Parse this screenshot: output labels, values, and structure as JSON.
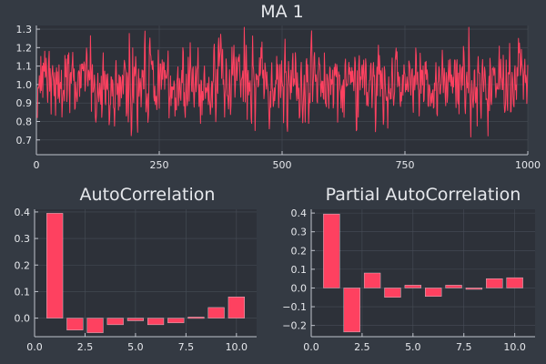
{
  "theme": {
    "background": "#343a43",
    "plot_background": "#2d3139",
    "grid": "#474d57",
    "axis": "#c0c4cc",
    "text": "#e6e8ec",
    "series_color": "#fe4160"
  },
  "chart_data": [
    {
      "type": "line",
      "title": "MA 1",
      "xlabel": "",
      "ylabel": "",
      "xlim": [
        0,
        1000
      ],
      "ylim": [
        0.62,
        1.32
      ],
      "xticks": [
        0,
        250,
        500,
        750,
        1000
      ],
      "xtick_labels": [
        "0",
        "250",
        "500",
        "750",
        "1000"
      ],
      "yticks": [
        0.7,
        0.8,
        0.9,
        1.0,
        1.1,
        1.2,
        1.3
      ],
      "ytick_labels": [
        "0.7",
        "0.8",
        "0.9",
        "1.0",
        "1.1",
        "1.2",
        "1.3"
      ],
      "grid": true,
      "n_points": 1000,
      "mean": 1.0,
      "std": 0.1,
      "min": 0.63,
      "max": 1.31,
      "series": [
        {
          "color": "#fe4160"
        }
      ]
    },
    {
      "type": "bar",
      "title": "AutoCorrelation",
      "xlabel": "",
      "ylabel": "",
      "x": [
        1,
        2,
        3,
        4,
        5,
        6,
        7,
        8,
        9,
        10
      ],
      "values": [
        0.395,
        -0.045,
        -0.055,
        -0.025,
        -0.01,
        -0.025,
        -0.018,
        0.004,
        0.04,
        0.08
      ],
      "xlim": [
        0,
        11
      ],
      "ylim": [
        -0.07,
        0.41
      ],
      "xticks": [
        0,
        2.5,
        5,
        7.5,
        10
      ],
      "xtick_labels": [
        "0.0",
        "2.5",
        "5.0",
        "7.5",
        "10.0"
      ],
      "yticks": [
        0,
        0.1,
        0.2,
        0.3,
        0.4
      ],
      "ytick_labels": [
        "0.0",
        "0.1",
        "0.2",
        "0.3",
        "0.4"
      ],
      "grid": true,
      "series": [
        {
          "color": "#fe4160"
        }
      ]
    },
    {
      "type": "bar",
      "title": "Partial AutoCorrelation",
      "xlabel": "",
      "ylabel": "",
      "x": [
        1,
        2,
        3,
        4,
        5,
        6,
        7,
        8,
        9,
        10
      ],
      "values": [
        0.395,
        -0.235,
        0.08,
        -0.05,
        0.015,
        -0.045,
        0.015,
        -0.005,
        0.05,
        0.055
      ],
      "xlim": [
        0,
        11
      ],
      "ylim": [
        -0.26,
        0.42
      ],
      "xticks": [
        0,
        2.5,
        5,
        7.5,
        10
      ],
      "xtick_labels": [
        "0.0",
        "2.5",
        "5.0",
        "7.5",
        "10.0"
      ],
      "yticks": [
        -0.2,
        -0.1,
        0,
        0.1,
        0.2,
        0.3,
        0.4
      ],
      "ytick_labels": [
        "−0.2",
        "−0.1",
        "0.0",
        "0.1",
        "0.2",
        "0.3",
        "0.4"
      ],
      "grid": true,
      "series": [
        {
          "color": "#fe4160"
        }
      ]
    }
  ]
}
